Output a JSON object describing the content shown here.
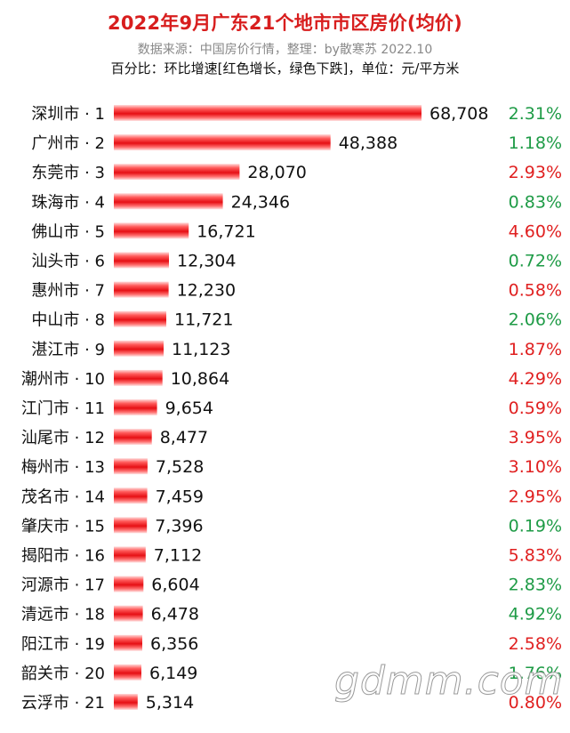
{
  "header": {
    "title": "2022年9月广东21个地市市区房价(均价)",
    "subtitle": "数据来源：中国房价行情，整理：by散寒苏  2022.10",
    "note": "百分比：环比增速[红色增长，绿色下跌]，单位：元/平方米"
  },
  "watermark": "gdmm.com",
  "colors": {
    "bar": "#ee1c24",
    "increase": "#e02020",
    "decrease": "#1e9b46",
    "title": "#d81e1e"
  },
  "chart_data": {
    "type": "bar",
    "orientation": "horizontal",
    "unit": "元/平方米",
    "categories": [
      "深圳市 · 1",
      "广州市 · 2",
      "东莞市 · 3",
      "珠海市 · 4",
      "佛山市 · 5",
      "汕头市 · 6",
      "惠州市 · 7",
      "中山市 · 8",
      "湛江市 · 9",
      "潮州市 · 10",
      "江门市 · 11",
      "汕尾市 · 12",
      "梅州市 · 13",
      "茂名市 · 14",
      "肇庆市 · 15",
      "揭阳市 · 16",
      "河源市 · 17",
      "清远市 · 18",
      "阳江市 · 19",
      "韶关市 · 20",
      "云浮市 · 21"
    ],
    "values": [
      68708,
      48388,
      28070,
      24346,
      16721,
      12304,
      12230,
      11721,
      11123,
      10864,
      9654,
      8477,
      7528,
      7459,
      7396,
      7112,
      6604,
      6478,
      6356,
      6149,
      5314
    ],
    "value_labels": [
      "68,708",
      "48,388",
      "28,070",
      "24,346",
      "16,721",
      "12,304",
      "12,230",
      "11,721",
      "11,123",
      "10,864",
      "9,654",
      "8,477",
      "7,528",
      "7,459",
      "7,396",
      "7,112",
      "6,604",
      "6,478",
      "6,356",
      "6,149",
      "5,314"
    ],
    "mom_change": [
      "2.31%",
      "1.18%",
      "2.93%",
      "0.83%",
      "4.60%",
      "0.72%",
      "0.58%",
      "2.06%",
      "1.87%",
      "4.29%",
      "0.59%",
      "3.95%",
      "3.10%",
      "2.95%",
      "0.19%",
      "5.83%",
      "2.83%",
      "4.92%",
      "2.58%",
      "1.76%",
      "0.80%"
    ],
    "mom_direction": [
      "down",
      "down",
      "up",
      "down",
      "up",
      "down",
      "up",
      "down",
      "up",
      "up",
      "up",
      "up",
      "up",
      "up",
      "down",
      "up",
      "down",
      "down",
      "up",
      "down",
      "up"
    ]
  }
}
